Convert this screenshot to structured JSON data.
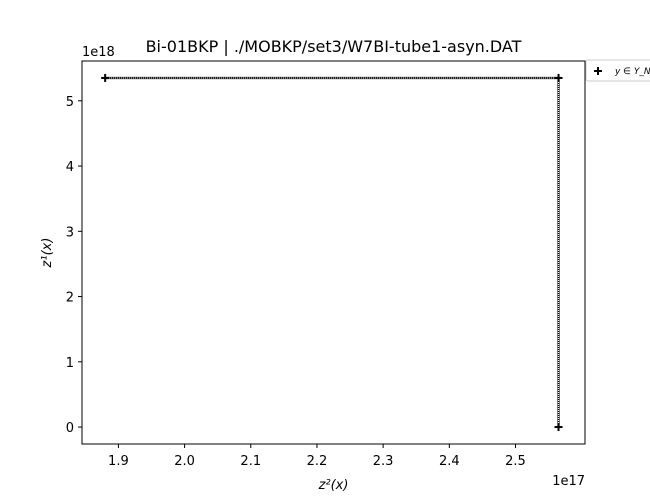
{
  "chart_data": {
    "type": "scatter",
    "title": "Bi-01BKP | ./MOBKP/set3/W7BI-tube1-asyn.DAT",
    "xlabel": "z²(x)",
    "ylabel": "z¹(x)",
    "x_offset_label": "1e17",
    "y_offset_label": "1e18",
    "x_scale": 1e+17,
    "y_scale": 1e+18,
    "xlim": [
      1.845,
      2.605
    ],
    "ylim": [
      -0.26,
      5.61
    ],
    "x_ticks": [
      1.9,
      2.0,
      2.1,
      2.2,
      2.3,
      2.4,
      2.5
    ],
    "x_tick_labels": [
      "1.9",
      "2.0",
      "2.1",
      "2.2",
      "2.3",
      "2.4",
      "2.5"
    ],
    "y_ticks": [
      0,
      1,
      2,
      3,
      4,
      5
    ],
    "y_tick_labels": [
      "0",
      "1",
      "2",
      "3",
      "4",
      "5"
    ],
    "grid": false,
    "legend_position": "outside-top-right",
    "series": [
      {
        "name": "y ∈ Y_N",
        "marker": "plus",
        "color": "#000000",
        "x": [
          1.88,
          2.565,
          2.565
        ],
        "y": [
          5.35,
          5.35,
          0.0
        ]
      }
    ],
    "connector": {
      "style": "dotted",
      "color": "#000000",
      "x": [
        1.88,
        2.565,
        2.565
      ],
      "y": [
        5.35,
        5.35,
        0.0
      ]
    }
  }
}
